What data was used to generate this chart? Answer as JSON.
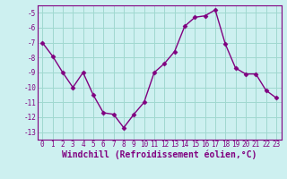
{
  "x": [
    0,
    1,
    2,
    3,
    4,
    5,
    6,
    7,
    8,
    9,
    10,
    11,
    12,
    13,
    14,
    15,
    16,
    17,
    18,
    19,
    20,
    21,
    22,
    23
  ],
  "y": [
    -7.0,
    -7.9,
    -9.0,
    -10.0,
    -9.0,
    -10.5,
    -11.7,
    -11.8,
    -12.7,
    -11.8,
    -11.0,
    -9.0,
    -8.4,
    -7.6,
    -5.9,
    -5.3,
    -5.2,
    -4.8,
    -7.1,
    -8.7,
    -9.1,
    -9.1,
    -10.2,
    -10.7
  ],
  "xlabel": "Windchill (Refroidissement éolien,°C)",
  "ylim": [
    -13.5,
    -4.5
  ],
  "xlim": [
    -0.5,
    23.5
  ],
  "yticks": [
    -13,
    -12,
    -11,
    -10,
    -9,
    -8,
    -7,
    -6,
    -5
  ],
  "xticks": [
    0,
    1,
    2,
    3,
    4,
    5,
    6,
    7,
    8,
    9,
    10,
    11,
    12,
    13,
    14,
    15,
    16,
    17,
    18,
    19,
    20,
    21,
    22,
    23
  ],
  "line_color": "#800080",
  "marker": "D",
  "marker_size": 2.5,
  "bg_color": "#cdf0f0",
  "grid_color": "#a0d8d0",
  "tick_fontsize": 5.5,
  "xlabel_fontsize": 7.0,
  "linewidth": 1.0
}
